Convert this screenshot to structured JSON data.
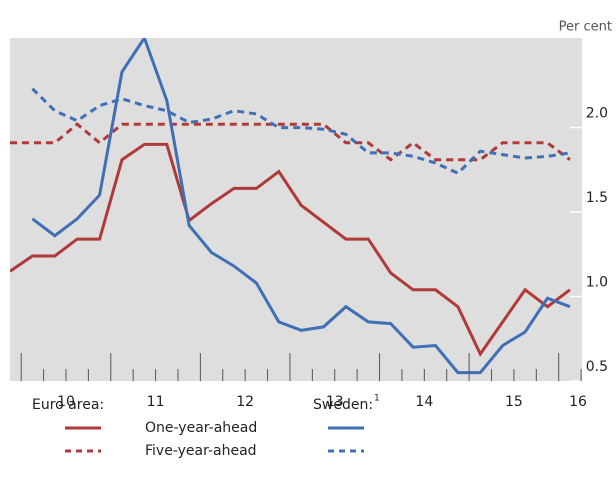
{
  "chart_data": {
    "type": "line",
    "y_unit": "Per cent",
    "x": [
      9.875,
      10.125,
      10.375,
      10.625,
      10.875,
      11.125,
      11.375,
      11.625,
      11.875,
      12.125,
      12.375,
      12.625,
      12.875,
      13.125,
      13.375,
      13.625,
      13.875,
      14.125,
      14.375,
      14.625,
      14.875,
      15.125,
      15.375,
      15.625,
      15.875,
      16.125
    ],
    "series": [
      {
        "name": "One-year-ahead",
        "color": "#b03a3a",
        "dash": false,
        "values": [
          1.15,
          1.24,
          1.24,
          1.34,
          1.34,
          1.81,
          1.9,
          1.9,
          1.45,
          1.55,
          1.64,
          1.64,
          1.74,
          1.54,
          1.44,
          1.34,
          1.34,
          1.14,
          1.04,
          1.04,
          0.94,
          0.66,
          0.85,
          1.04,
          0.94,
          1.04
        ]
      },
      {
        "name": "Five-year-ahead",
        "color": "#b03a3a",
        "dash": true,
        "values": [
          1.91,
          1.91,
          1.91,
          2.02,
          1.91,
          2.02,
          2.02,
          2.02,
          2.02,
          2.02,
          2.02,
          2.02,
          2.02,
          2.02,
          2.02,
          1.91,
          1.91,
          1.81,
          1.91,
          1.81,
          1.81,
          1.81,
          1.91,
          1.91,
          1.91,
          1.81
        ]
      },
      {
        "color": "#3f6fb5",
        "dash": false,
        "values": [
          null,
          1.46,
          1.36,
          1.46,
          1.6,
          2.33,
          2.53,
          2.16,
          1.42,
          1.26,
          1.18,
          1.08,
          0.85,
          0.8,
          0.82,
          0.94,
          0.85,
          0.84,
          0.7,
          0.71,
          0.55,
          0.55,
          0.71,
          0.79,
          0.99,
          0.94
        ]
      },
      {
        "color": "#3f6fb5",
        "dash": true,
        "values": [
          null,
          2.23,
          2.1,
          2.04,
          2.13,
          2.17,
          2.13,
          2.1,
          2.03,
          2.05,
          2.1,
          2.08,
          2.0,
          2.0,
          1.99,
          1.96,
          1.85,
          1.85,
          1.83,
          1.79,
          1.73,
          1.86,
          1.84,
          1.82,
          1.83,
          1.85
        ]
      }
    ],
    "legend_groups": [
      "Euro area:",
      "Sweden:"
    ],
    "legend_group_note": "1",
    "xlim": [
      9.875,
      16.26
    ],
    "xticks": [
      10,
      10.25,
      10.5,
      10.75,
      11,
      11.25,
      11.5,
      11.75,
      12,
      12.25,
      12.5,
      12.75,
      13,
      13.25,
      13.5,
      13.75,
      14,
      14.25,
      14.5,
      14.75,
      15,
      15.25,
      15.5,
      15.75,
      16,
      16.25
    ],
    "xtick_labels": [
      {
        "value": 10.5,
        "label": "10"
      },
      {
        "value": 11.5,
        "label": "11"
      },
      {
        "value": 12.5,
        "label": "12"
      },
      {
        "value": 13.5,
        "label": "13"
      },
      {
        "value": 14.5,
        "label": "14"
      },
      {
        "value": 15.5,
        "label": "15"
      },
      {
        "value": 16.5,
        "label": "16"
      }
    ],
    "ylim": [
      0.5,
      2.53
    ],
    "yticks": [
      0.5,
      {
        "value": 1,
        "label": "1.0"
      },
      1.5,
      {
        "value": 2,
        "label": "2.0"
      }
    ],
    "y_axis_side": "right"
  }
}
